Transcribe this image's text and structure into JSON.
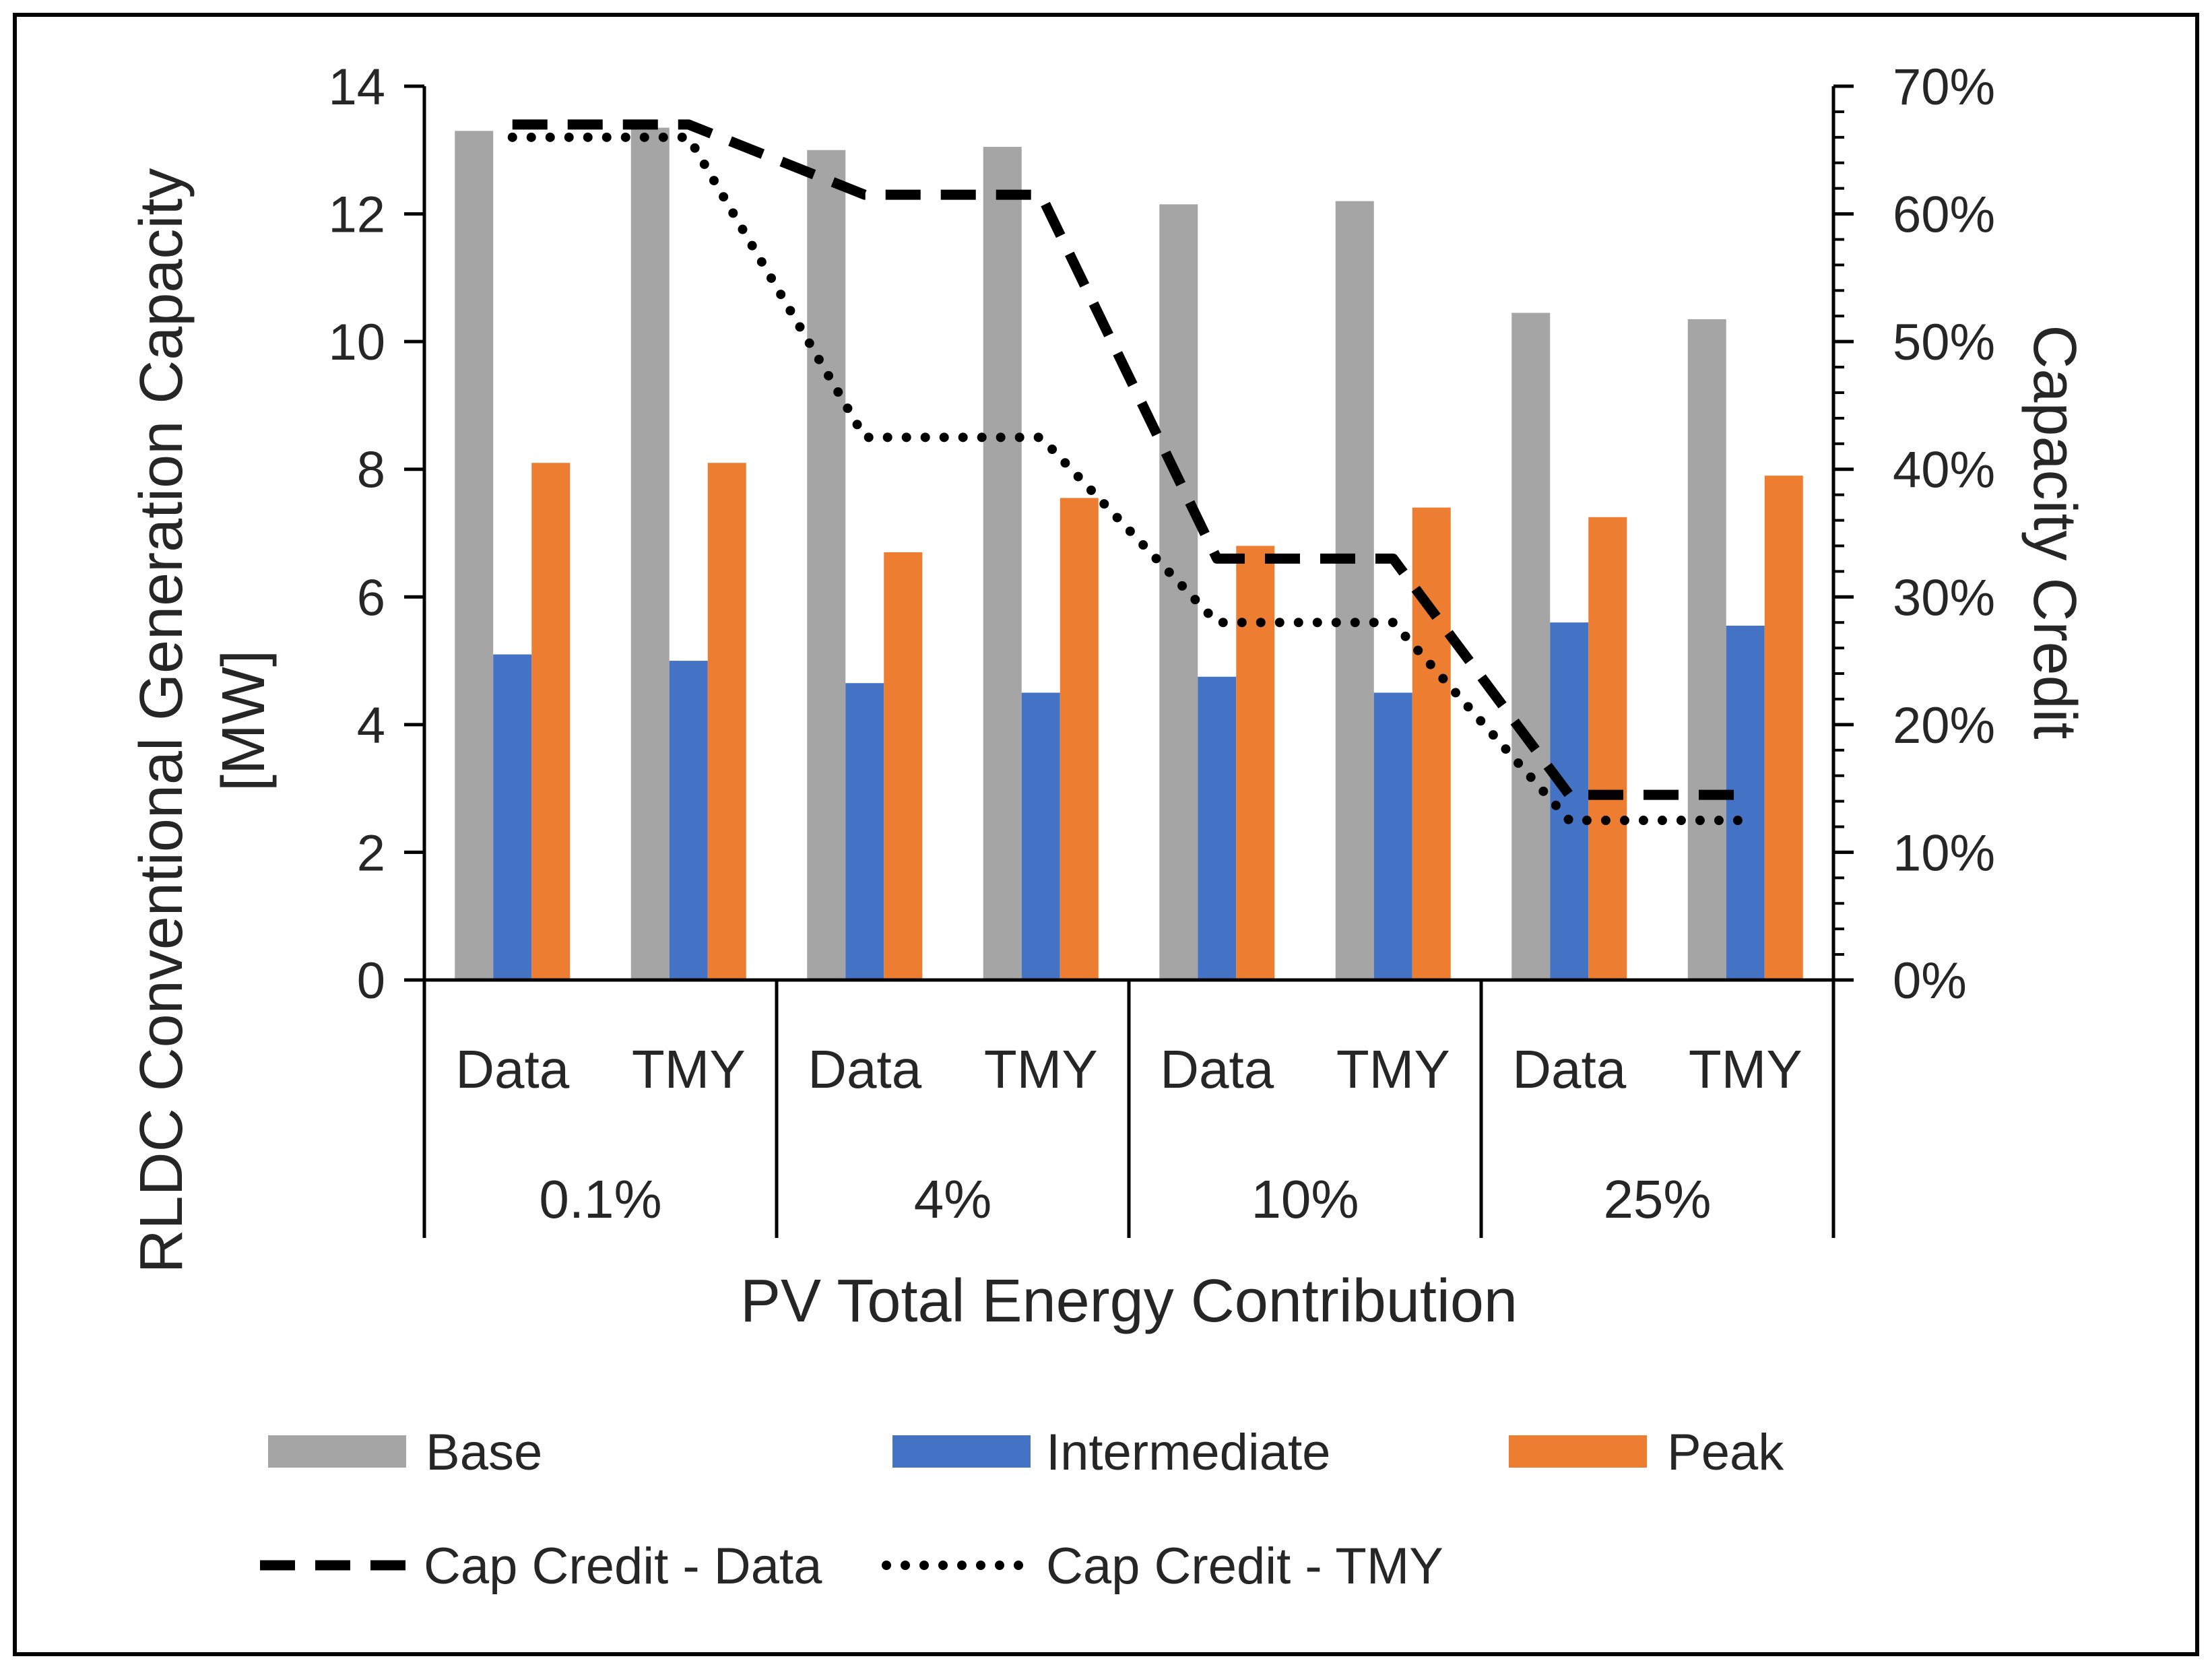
{
  "chart_data": {
    "type": "bar",
    "title": "",
    "xlabel": "PV Total Energy Contribution",
    "ylabel_lines": [
      "RLDC Conventional Generation Capacity",
      "[MW]"
    ],
    "y2label": "Capacity Credit",
    "groups": [
      "0.1%",
      "4%",
      "10%",
      "25%"
    ],
    "categories": [
      "Data",
      "TMY",
      "Data",
      "TMY",
      "Data",
      "TMY",
      "Data",
      "TMY"
    ],
    "ylim": [
      0,
      14
    ],
    "yticks": [
      0,
      2,
      4,
      6,
      8,
      10,
      12,
      14
    ],
    "y2lim": [
      0,
      70
    ],
    "y2ticks": [
      0,
      10,
      20,
      30,
      40,
      50,
      60,
      70
    ],
    "y2tick_suffix": "%",
    "grid": false,
    "legend_position": "bottom",
    "series": [
      {
        "name": "Base",
        "kind": "bar",
        "axis": "left",
        "color": "#a5a5a5",
        "values": [
          13.3,
          13.35,
          13.0,
          13.05,
          12.15,
          12.2,
          10.45,
          10.35
        ]
      },
      {
        "name": "Intermediate",
        "kind": "bar",
        "axis": "left",
        "color": "#4472c4",
        "values": [
          5.1,
          5.0,
          4.65,
          4.5,
          4.75,
          4.5,
          5.6,
          5.55
        ]
      },
      {
        "name": "Peak",
        "kind": "bar",
        "axis": "left",
        "color": "#ed7d31",
        "values": [
          8.1,
          8.1,
          6.7,
          7.55,
          6.8,
          7.4,
          7.25,
          7.9
        ]
      },
      {
        "name": "Cap Credit - Data",
        "kind": "line",
        "axis": "right",
        "dash": "dashed",
        "color": "#000000",
        "values": [
          67,
          67,
          61.5,
          61.5,
          33,
          33,
          14.5,
          14.5
        ]
      },
      {
        "name": "Cap Credit - TMY",
        "kind": "line",
        "axis": "right",
        "dash": "dotted",
        "color": "#000000",
        "values": [
          66,
          66,
          42.5,
          42.5,
          28,
          28,
          12.5,
          12.5
        ]
      }
    ]
  }
}
